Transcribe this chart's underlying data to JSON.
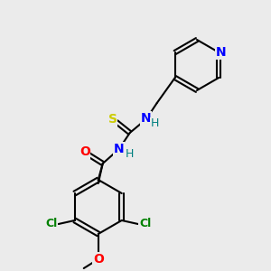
{
  "bg_color": "#ebebeb",
  "bond_color": "#000000",
  "bond_lw": 1.5,
  "atoms": {
    "S": {
      "color": "#cccc00",
      "fontsize": 10,
      "fontweight": "bold"
    },
    "O": {
      "color": "#ff0000",
      "fontsize": 10,
      "fontweight": "bold"
    },
    "N": {
      "color": "#0000ff",
      "fontsize": 10,
      "fontweight": "bold"
    },
    "N_teal": {
      "color": "#008080",
      "fontsize": 10,
      "fontweight": "bold"
    },
    "Cl": {
      "color": "#008000",
      "fontsize": 9,
      "fontweight": "bold"
    },
    "H": {
      "color": "#008080",
      "fontsize": 9,
      "fontweight": "normal"
    }
  }
}
